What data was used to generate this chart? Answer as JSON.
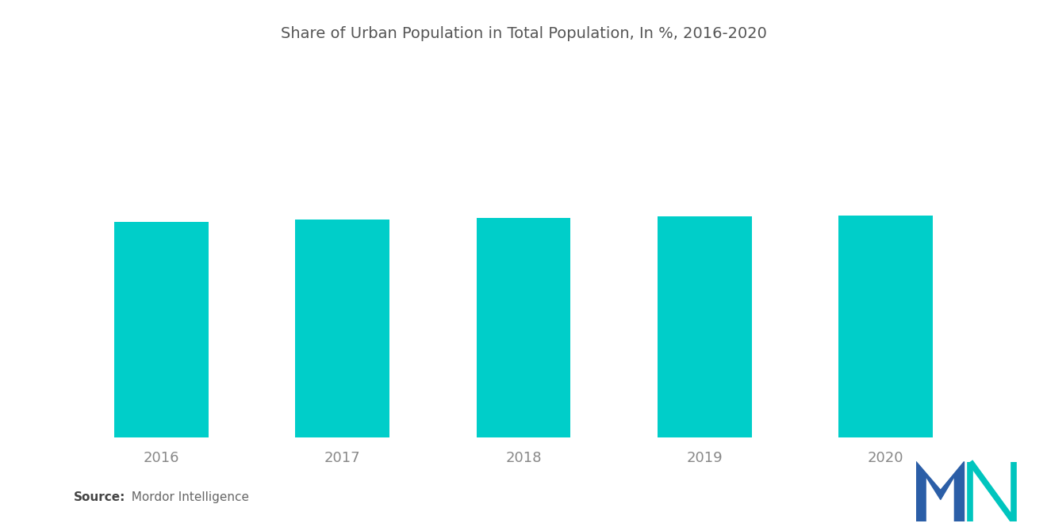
{
  "title": "Share of Urban Population in Total Population, In %, 2016-2020",
  "categories": [
    "2016",
    "2017",
    "2018",
    "2019",
    "2020"
  ],
  "values": [
    85.0,
    85.8,
    86.5,
    87.0,
    87.4
  ],
  "bar_color": "#00CEC9",
  "background_color": "#ffffff",
  "title_fontsize": 14,
  "tick_label_fontsize": 13,
  "tick_label_color": "#888888",
  "source_bold": "Source:",
  "source_rest": "  Mordor Intelligence",
  "ylim_max": 135,
  "bar_width": 0.52,
  "logo_blue": "#2B5EA7",
  "logo_teal": "#00C5BE",
  "title_color": "#555555",
  "source_fontsize": 11
}
